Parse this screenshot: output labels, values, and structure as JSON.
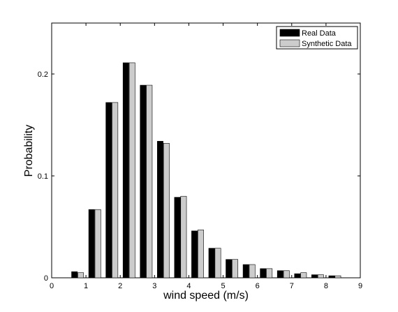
{
  "chart_data": {
    "type": "bar",
    "xlabel": "wind speed (m/s)",
    "ylabel": "Probability",
    "xlim": [
      0,
      9
    ],
    "ylim": [
      0,
      0.25
    ],
    "xticks": [
      "0",
      "1",
      "2",
      "3",
      "4",
      "5",
      "6",
      "7",
      "8",
      "9"
    ],
    "yticks": [
      "0",
      "0.1",
      "0.2"
    ],
    "grid": false,
    "legend_position": "top-right",
    "categories": [
      0.75,
      1.25,
      1.75,
      2.25,
      2.75,
      3.25,
      3.75,
      4.25,
      4.75,
      5.25,
      5.75,
      6.25,
      6.75,
      7.25,
      7.75,
      8.25
    ],
    "series": [
      {
        "name": "Real Data",
        "color": "#000000",
        "values": [
          0.006,
          0.067,
          0.172,
          0.211,
          0.189,
          0.134,
          0.079,
          0.046,
          0.029,
          0.018,
          0.013,
          0.009,
          0.007,
          0.004,
          0.003,
          0.002
        ]
      },
      {
        "name": "Synthetic Data",
        "color": "#cccccc",
        "values": [
          0.005,
          0.067,
          0.172,
          0.211,
          0.189,
          0.132,
          0.08,
          0.047,
          0.029,
          0.018,
          0.013,
          0.009,
          0.007,
          0.005,
          0.003,
          0.002
        ]
      }
    ]
  }
}
